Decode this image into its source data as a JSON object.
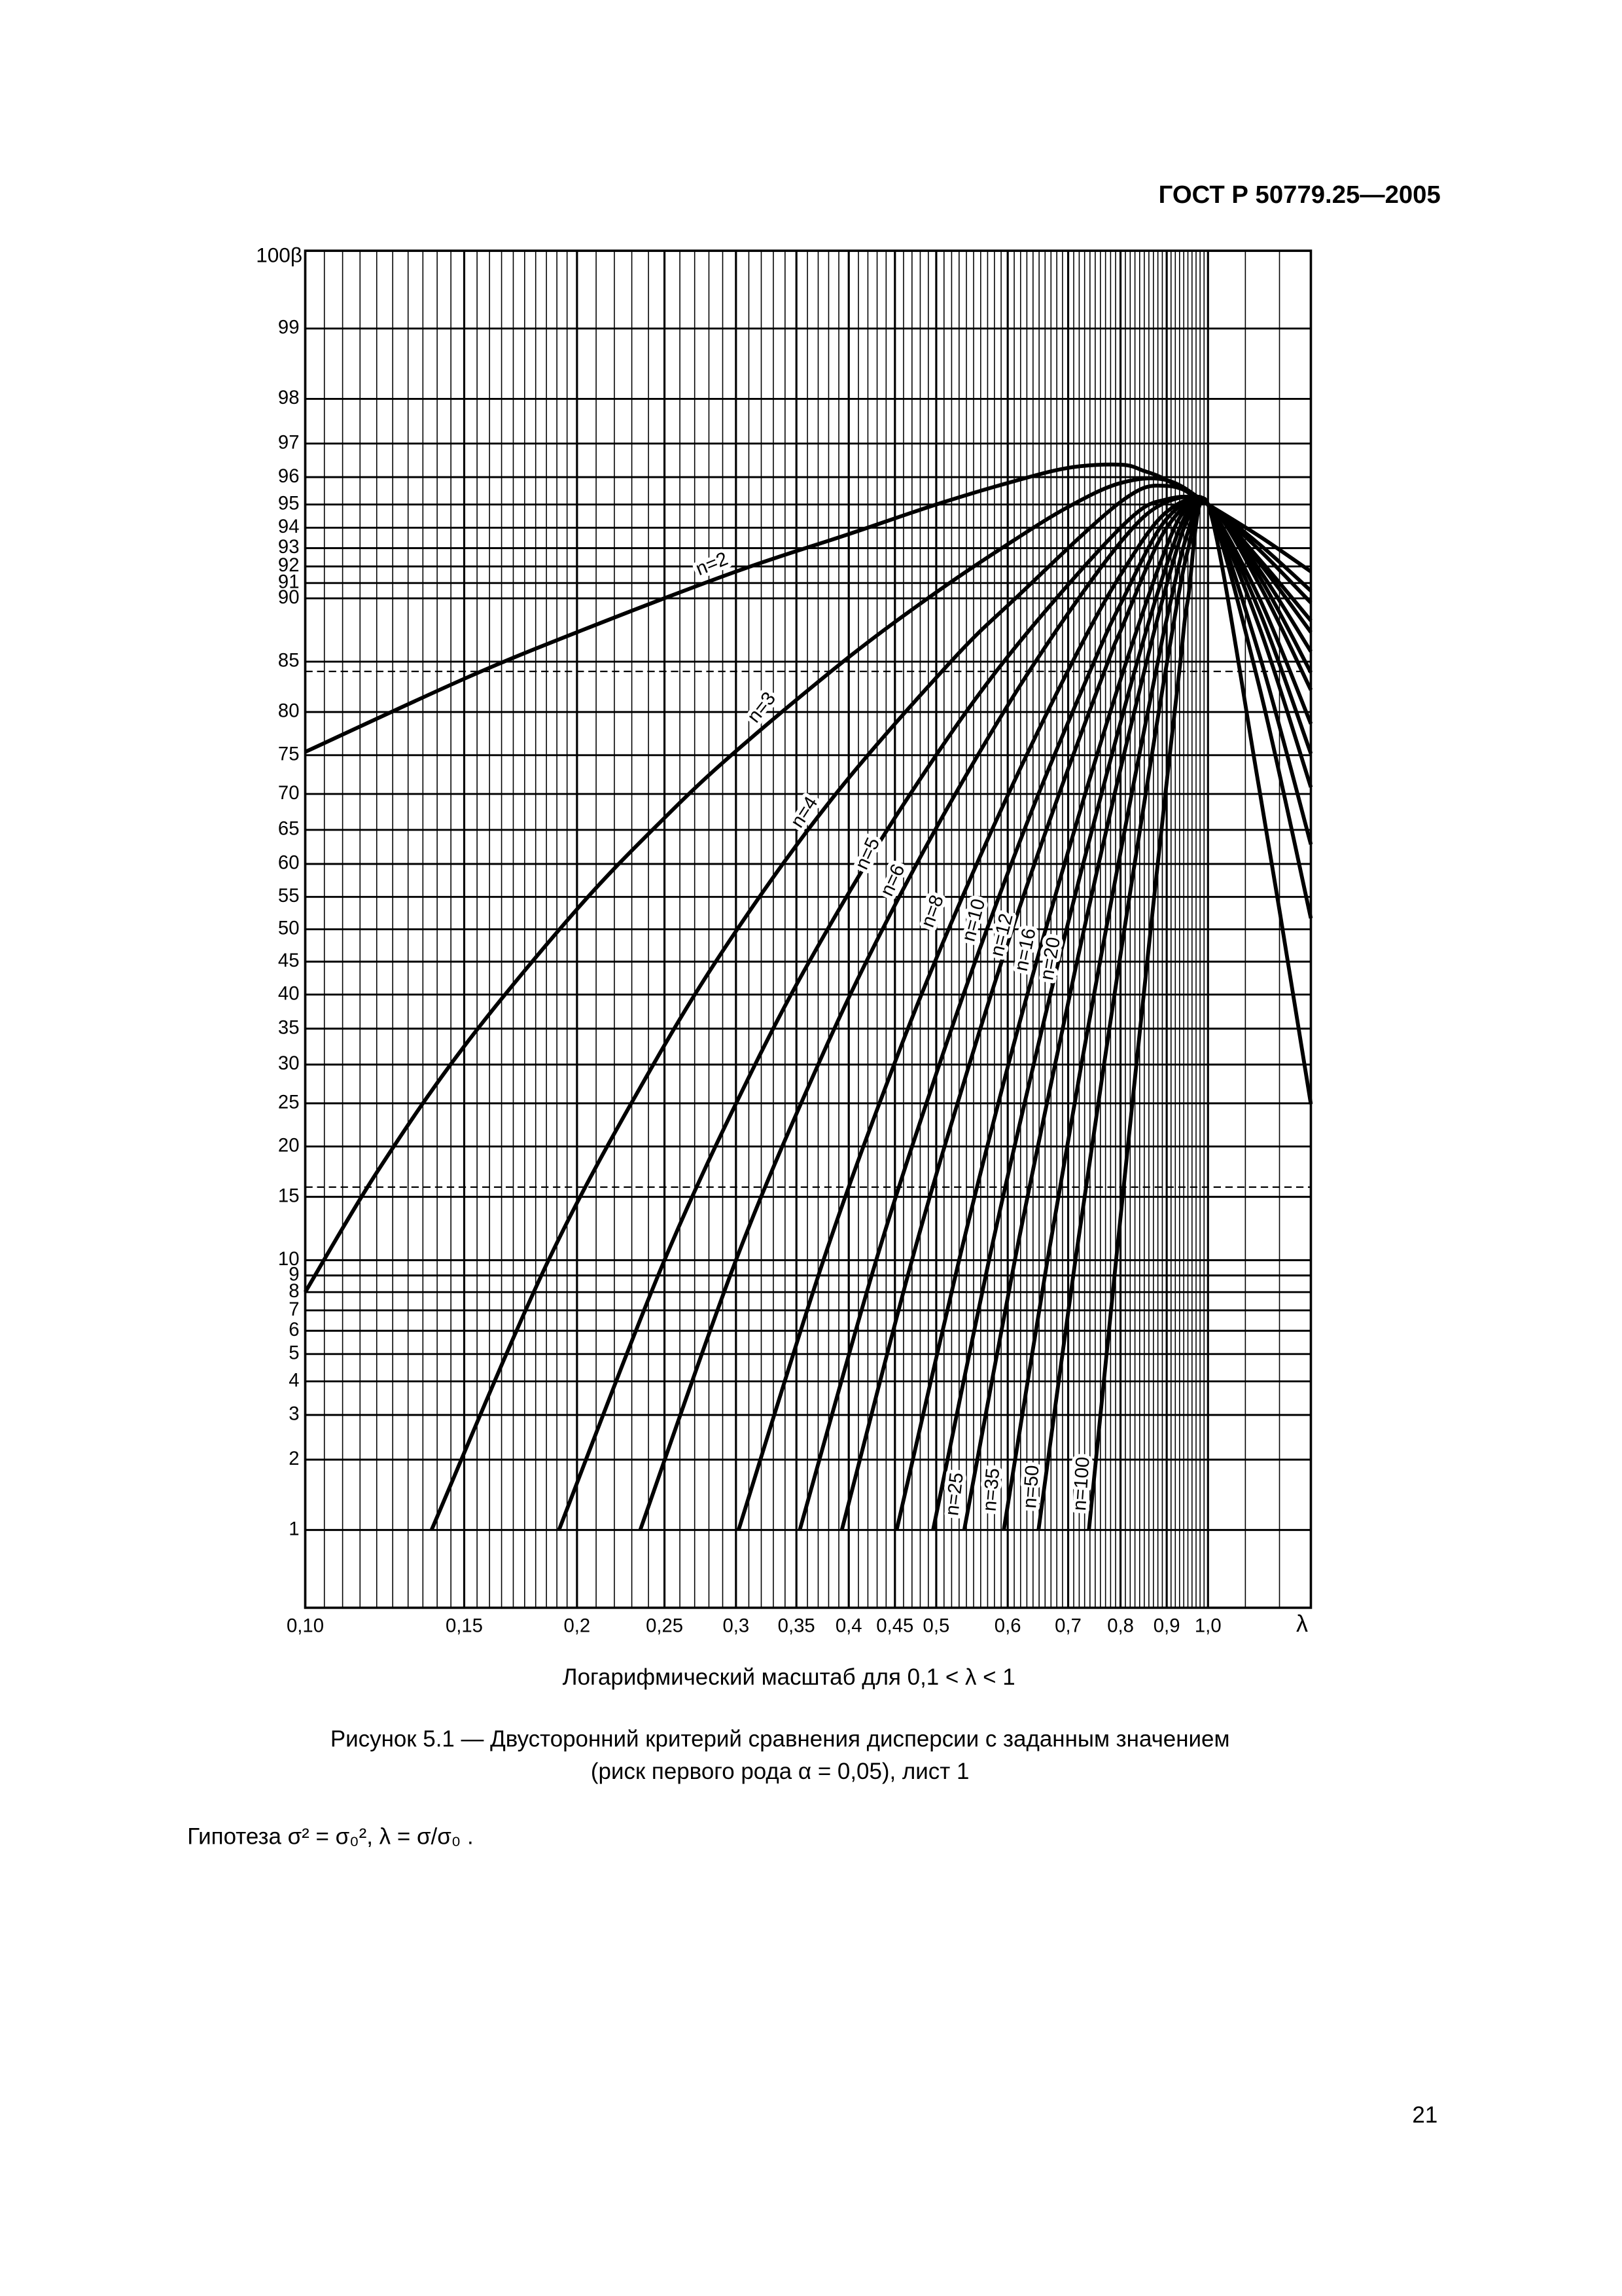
{
  "header": "ГОСТ Р 50779.25—2005",
  "chart_data": {
    "type": "line",
    "ylabel": "100β",
    "xlabel": "λ",
    "xlabel_note": "Логарифмический масштаб для 0,1 < λ  < 1",
    "xscale": "log",
    "yscale": "probability",
    "xlim": [
      0.1,
      1.3
    ],
    "ylim": [
      0.43,
      99.57
    ],
    "xticks": [
      {
        "value": 0.1,
        "label": "0,10"
      },
      {
        "value": 0.15,
        "label": "0,15"
      },
      {
        "value": 0.2,
        "label": "0,2"
      },
      {
        "value": 0.25,
        "label": "0,25"
      },
      {
        "value": 0.3,
        "label": "0,3"
      },
      {
        "value": 0.35,
        "label": "0,35"
      },
      {
        "value": 0.4,
        "label": "0,4"
      },
      {
        "value": 0.45,
        "label": "0,45"
      },
      {
        "value": 0.5,
        "label": "0,5"
      },
      {
        "value": 0.6,
        "label": "0,6"
      },
      {
        "value": 0.7,
        "label": "0,7"
      },
      {
        "value": 0.8,
        "label": "0,8"
      },
      {
        "value": 0.9,
        "label": "0,9"
      },
      {
        "value": 1.0,
        "label": "1,0"
      }
    ],
    "yticks": [
      1,
      2,
      3,
      4,
      5,
      6,
      7,
      8,
      9,
      10,
      15,
      20,
      25,
      30,
      35,
      40,
      45,
      50,
      55,
      60,
      65,
      70,
      75,
      80,
      85,
      90,
      91,
      92,
      93,
      94,
      95,
      96,
      97,
      98,
      99
    ],
    "xgrid": [
      0.1,
      0.105,
      0.11,
      0.115,
      0.12,
      0.125,
      0.13,
      0.135,
      0.14,
      0.145,
      0.15,
      0.155,
      0.16,
      0.165,
      0.17,
      0.175,
      0.18,
      0.185,
      0.19,
      0.195,
      0.2,
      0.21,
      0.22,
      0.23,
      0.24,
      0.25,
      0.26,
      0.27,
      0.28,
      0.29,
      0.3,
      0.31,
      0.32,
      0.33,
      0.34,
      0.35,
      0.36,
      0.37,
      0.38,
      0.39,
      0.4,
      0.41,
      0.42,
      0.43,
      0.44,
      0.45,
      0.46,
      0.47,
      0.48,
      0.49,
      0.5,
      0.51,
      0.52,
      0.53,
      0.54,
      0.55,
      0.56,
      0.57,
      0.58,
      0.59,
      0.6,
      0.61,
      0.62,
      0.63,
      0.64,
      0.65,
      0.66,
      0.67,
      0.68,
      0.69,
      0.7,
      0.71,
      0.72,
      0.73,
      0.74,
      0.75,
      0.76,
      0.77,
      0.78,
      0.79,
      0.8,
      0.81,
      0.82,
      0.83,
      0.84,
      0.85,
      0.86,
      0.87,
      0.88,
      0.89,
      0.9,
      0.91,
      0.92,
      0.93,
      0.94,
      0.95,
      0.96,
      0.97,
      0.98,
      0.99,
      1.0,
      1.1,
      1.2,
      1.3
    ],
    "grid": true,
    "reference_lines": [
      84.1,
      15.9
    ],
    "series": [
      {
        "name": "n=2",
        "color": "#000000",
        "x": [
          0.1,
          0.15,
          0.2,
          0.3,
          0.4,
          0.5,
          0.6,
          0.7,
          0.8,
          0.85,
          0.9,
          1.0,
          1.14,
          1.3
        ],
        "values": [
          75.4,
          83.4,
          87.5,
          91.7,
          93.7,
          95.0,
          95.8,
          96.3,
          96.4,
          96.2,
          95.9,
          95.0,
          93.6,
          91.7
        ]
      },
      {
        "name": "n=3",
        "color": "#000000",
        "x": [
          0.1,
          0.12,
          0.15,
          0.2,
          0.25,
          0.3,
          0.4,
          0.5,
          0.6,
          0.7,
          0.8,
          0.9,
          1.0,
          1.14,
          1.3
        ],
        "values": [
          8.0,
          17.3,
          32.5,
          53.1,
          66.7,
          75.5,
          85.4,
          90.4,
          93.2,
          94.9,
          95.8,
          95.9,
          95.0,
          93.2,
          90.5
        ]
      },
      {
        "name": "n=4",
        "color": "#000000",
        "x": [
          0.138,
          0.186,
          0.243,
          0.301,
          0.387,
          0.519,
          0.612,
          0.8,
          0.9,
          1.0,
          1.14,
          1.3
        ],
        "values": [
          1,
          10,
          30,
          50,
          70,
          85,
          90,
          95.1,
          95.7,
          95,
          92.9,
          89.7
        ]
      },
      {
        "name": "n=5",
        "color": "#000000",
        "x": [
          0.191,
          0.25,
          0.315,
          0.379,
          0.468,
          0.594,
          0.8,
          0.9,
          1.0,
          1.14,
          1.3
        ],
        "values": [
          1,
          10,
          30,
          50,
          70,
          85,
          94.0,
          95.2,
          95,
          92.4,
          88.4
        ]
      },
      {
        "name": "n=6",
        "color": "#000000",
        "x": [
          0.235,
          0.3,
          0.37,
          0.436,
          0.525,
          0.644,
          0.8,
          0.9,
          1.0,
          1.14,
          1.3
        ],
        "values": [
          1,
          10,
          30,
          50,
          70,
          85,
          93.3,
          95.1,
          95,
          92.2,
          87.5
        ]
      },
      {
        "name": "n=8",
        "color": "#000000",
        "x": [
          0.302,
          0.375,
          0.449,
          0.516,
          0.601,
          0.708,
          0.8,
          0.9,
          1.0,
          1.14,
          1.3
        ],
        "values": [
          1,
          10,
          30,
          50,
          70,
          85,
          91.5,
          94.7,
          95,
          91.8,
          85.9
        ]
      },
      {
        "name": "n=10",
        "color": "#000000",
        "x": [
          0.353,
          0.429,
          0.504,
          0.569,
          0.649,
          0.748,
          0.8,
          0.9,
          1.0,
          1.14,
          1.3
        ],
        "values": [
          1,
          10,
          30,
          50,
          70,
          85,
          89.6,
          94.4,
          95,
          91.4,
          84.0
        ]
      },
      {
        "name": "n=12",
        "color": "#000000",
        "x": [
          0.393,
          0.47,
          0.544,
          0.607,
          0.684,
          0.775,
          0.8,
          0.9,
          1.0,
          1.14,
          1.3
        ],
        "values": [
          1,
          10,
          30,
          50,
          70,
          85,
          87.6,
          94.0,
          95,
          90.9,
          82.3
        ]
      },
      {
        "name": "n=16",
        "color": "#000000",
        "x": [
          0.452,
          0.53,
          0.601,
          0.661,
          0.731,
          0.812,
          0.9,
          0.95,
          1.0,
          1.14,
          1.3
        ],
        "values": [
          1,
          10,
          30,
          50,
          70,
          85,
          93.1,
          94.9,
          95,
          90.0,
          78.7
        ]
      },
      {
        "name": "n=20",
        "color": "#000000",
        "x": [
          0.496,
          0.572,
          0.641,
          0.697,
          0.762,
          0.835,
          0.9,
          0.95,
          1.0,
          1.14,
          1.3
        ],
        "values": [
          1,
          10,
          30,
          50,
          70,
          85,
          92.1,
          94.7,
          95,
          89.1,
          75.2
        ]
      },
      {
        "name": "n=25",
        "color": "#000000",
        "x": [
          0.537,
          0.611,
          0.677,
          0.729,
          0.788,
          0.855,
          0.9,
          0.95,
          1.0,
          1.14,
          1.3
        ],
        "values": [
          1,
          10,
          30,
          50,
          70,
          85,
          90.9,
          94.4,
          95,
          87.9,
          70.9
        ]
      },
      {
        "name": "n=35",
        "color": "#000000",
        "x": [
          0.594,
          0.664,
          0.724,
          0.771,
          0.823,
          0.88,
          0.9,
          0.95,
          1.0,
          1.14,
          1.3
        ],
        "values": [
          1,
          10,
          30,
          50,
          70,
          85,
          88.5,
          93.8,
          95,
          85.6,
          62.9
        ]
      },
      {
        "name": "n=50",
        "color": "#000000",
        "x": [
          0.649,
          0.713,
          0.767,
          0.808,
          0.853,
          0.901,
          0.95,
          1.0,
          1.14,
          1.3
        ],
        "values": [
          1,
          10,
          30,
          50,
          70,
          85,
          92.9,
          95,
          82.6,
          51.7
        ]
      },
      {
        "name": "n=100",
        "color": "#000000",
        "x": [
          0.738,
          0.791,
          0.833,
          0.864,
          0.897,
          0.932,
          0.95,
          1.0,
          1.14,
          1.3
        ],
        "values": [
          1,
          10,
          30,
          50,
          70,
          85,
          89.9,
          95,
          70.6,
          24.9
        ]
      }
    ]
  },
  "caption": [
    "Рисунок 5.1 — Двусторонний критерий сравнения дисперсии с заданным значением",
    "(риск первого рода α = 0,05), лист 1"
  ],
  "formula": "Гипотеза σ² = σ₀², λ = σ/σ₀ .",
  "page_number": 21
}
